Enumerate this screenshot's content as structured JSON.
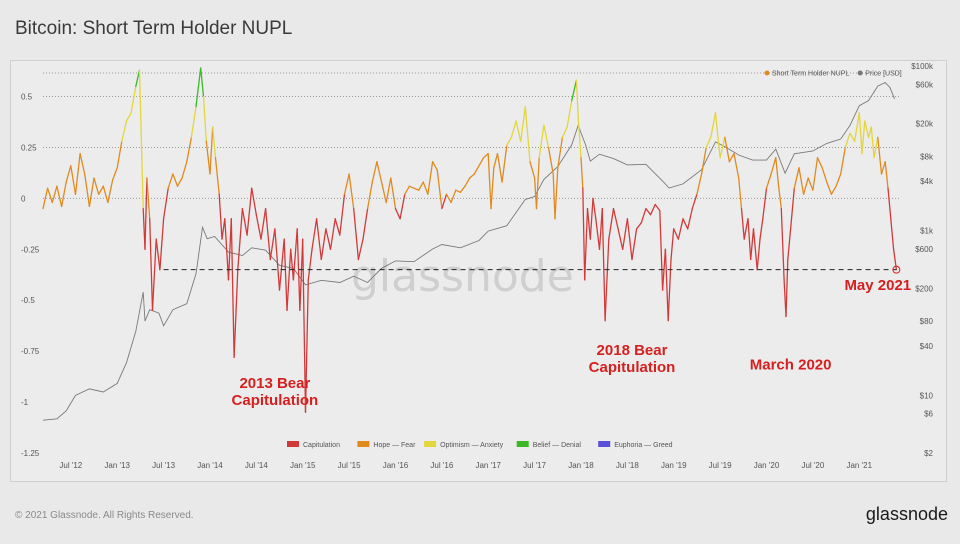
{
  "page": {
    "title": "Bitcoin: Short Term Holder NUPL",
    "copyright": "© 2021 Glassnode. All Rights Reserved.",
    "brand": "glassnode",
    "watermark": "glassnode"
  },
  "chart_data": {
    "type": "line",
    "title": "Bitcoin: Short Term Holder NUPL",
    "x_range": [
      2012.2,
      2021.45
    ],
    "x_ticks": [
      {
        "label": "Jul '12",
        "t": 2012.5
      },
      {
        "label": "Jan '13",
        "t": 2013.0
      },
      {
        "label": "Jul '13",
        "t": 2013.5
      },
      {
        "label": "Jan '14",
        "t": 2014.0
      },
      {
        "label": "Jul '14",
        "t": 2014.5
      },
      {
        "label": "Jan '15",
        "t": 2015.0
      },
      {
        "label": "Jul '15",
        "t": 2015.5
      },
      {
        "label": "Jan '16",
        "t": 2016.0
      },
      {
        "label": "Jul '16",
        "t": 2016.5
      },
      {
        "label": "Jan '17",
        "t": 2017.0
      },
      {
        "label": "Jul '17",
        "t": 2017.5
      },
      {
        "label": "Jan '18",
        "t": 2018.0
      },
      {
        "label": "Jul '18",
        "t": 2018.5
      },
      {
        "label": "Jan '19",
        "t": 2019.0
      },
      {
        "label": "Jul '19",
        "t": 2019.5
      },
      {
        "label": "Jan '20",
        "t": 2020.0
      },
      {
        "label": "Jul '20",
        "t": 2020.5
      },
      {
        "label": "Jan '21",
        "t": 2021.0
      }
    ],
    "y_left": {
      "range": [
        -1.25,
        0.65
      ],
      "ticks": [
        {
          "label": "0.5",
          "v": 0.5
        },
        {
          "label": "0.25",
          "v": 0.25
        },
        {
          "label": "0",
          "v": 0
        },
        {
          "label": "-0.25",
          "v": -0.25
        },
        {
          "label": "-0.5",
          "v": -0.5
        },
        {
          "label": "-0.75",
          "v": -0.75
        },
        {
          "label": "-1",
          "v": -1
        },
        {
          "label": "-1.25",
          "v": -1.25
        }
      ]
    },
    "y_right": {
      "scale": "log",
      "range": [
        2,
        100000
      ],
      "ticks": [
        {
          "label": "$100k",
          "v": 100000
        },
        {
          "label": "$60k",
          "v": 60000
        },
        {
          "label": "$20k",
          "v": 20000
        },
        {
          "label": "$8k",
          "v": 8000
        },
        {
          "label": "$4k",
          "v": 4000
        },
        {
          "label": "$1k",
          "v": 1000
        },
        {
          "label": "$600",
          "v": 600
        },
        {
          "label": "$200",
          "v": 200
        },
        {
          "label": "$80",
          "v": 80
        },
        {
          "label": "$40",
          "v": 40
        },
        {
          "label": "$10",
          "v": 10
        },
        {
          "label": "$6",
          "v": 6
        },
        {
          "label": "$2",
          "v": 2
        }
      ]
    },
    "legend_top": [
      {
        "label": "Short Term Holder NUPL",
        "color": "#e08a1e"
      },
      {
        "label": "Price [USD]",
        "color": "#777777"
      }
    ],
    "legend_bottom": [
      {
        "label": "Capitulation",
        "color": "#d23a3a"
      },
      {
        "label": "Hope — Fear",
        "color": "#e08a1e"
      },
      {
        "label": "Optimism — Anxiety",
        "color": "#e3d63a"
      },
      {
        "label": "Belief — Denial",
        "color": "#3cb829"
      },
      {
        "label": "Euphoria — Greed",
        "color": "#5a4fd8"
      }
    ],
    "zones": [
      {
        "name": "Capitulation",
        "max": 0,
        "color": "#d23a3a"
      },
      {
        "name": "Hope — Fear",
        "max": 0.25,
        "color": "#e08a1e"
      },
      {
        "name": "Optimism — Anxiety",
        "max": 0.5,
        "color": "#e3d63a"
      },
      {
        "name": "Belief — Denial",
        "max": 0.75,
        "color": "#3cb829"
      },
      {
        "name": "Euphoria — Greed",
        "max": 1,
        "color": "#5a4fd8"
      }
    ],
    "reference_line": {
      "value": -0.35,
      "from": 2013.5,
      "to": 2021.4,
      "style": "dashed"
    },
    "nupl_series": [
      [
        2012.2,
        -0.05
      ],
      [
        2012.25,
        0.05
      ],
      [
        2012.3,
        -0.02
      ],
      [
        2012.35,
        0.06
      ],
      [
        2012.4,
        -0.04
      ],
      [
        2012.45,
        0.08
      ],
      [
        2012.5,
        0.16
      ],
      [
        2012.55,
        0.02
      ],
      [
        2012.6,
        0.22
      ],
      [
        2012.65,
        0.12
      ],
      [
        2012.7,
        -0.04
      ],
      [
        2012.75,
        0.1
      ],
      [
        2012.8,
        0.02
      ],
      [
        2012.85,
        0.06
      ],
      [
        2012.9,
        -0.02
      ],
      [
        2012.95,
        0.09
      ],
      [
        2013.0,
        0.15
      ],
      [
        2013.05,
        0.28
      ],
      [
        2013.1,
        0.38
      ],
      [
        2013.15,
        0.42
      ],
      [
        2013.2,
        0.55
      ],
      [
        2013.24,
        0.63
      ],
      [
        2013.28,
        -0.05
      ],
      [
        2013.3,
        -0.25
      ],
      [
        2013.32,
        0.1
      ],
      [
        2013.35,
        -0.1
      ],
      [
        2013.38,
        -0.55
      ],
      [
        2013.42,
        -0.2
      ],
      [
        2013.46,
        -0.35
      ],
      [
        2013.5,
        -0.1
      ],
      [
        2013.55,
        0.05
      ],
      [
        2013.6,
        0.12
      ],
      [
        2013.65,
        0.06
      ],
      [
        2013.7,
        0.1
      ],
      [
        2013.75,
        0.18
      ],
      [
        2013.8,
        0.3
      ],
      [
        2013.85,
        0.45
      ],
      [
        2013.9,
        0.64
      ],
      [
        2013.93,
        0.5
      ],
      [
        2013.96,
        0.28
      ],
      [
        2014.0,
        0.12
      ],
      [
        2014.03,
        0.35
      ],
      [
        2014.06,
        0.2
      ],
      [
        2014.1,
        0.02
      ],
      [
        2014.13,
        -0.2
      ],
      [
        2014.16,
        -0.1
      ],
      [
        2014.2,
        -0.4
      ],
      [
        2014.23,
        -0.1
      ],
      [
        2014.26,
        -0.78
      ],
      [
        2014.3,
        -0.35
      ],
      [
        2014.35,
        -0.05
      ],
      [
        2014.4,
        -0.18
      ],
      [
        2014.45,
        0.05
      ],
      [
        2014.5,
        -0.08
      ],
      [
        2014.55,
        -0.2
      ],
      [
        2014.6,
        -0.05
      ],
      [
        2014.65,
        -0.3
      ],
      [
        2014.7,
        -0.15
      ],
      [
        2014.75,
        -0.45
      ],
      [
        2014.8,
        -0.2
      ],
      [
        2014.83,
        -0.55
      ],
      [
        2014.87,
        -0.25
      ],
      [
        2014.9,
        -0.4
      ],
      [
        2014.94,
        -0.15
      ],
      [
        2014.97,
        -0.55
      ],
      [
        2015.0,
        -0.2
      ],
      [
        2015.03,
        -1.05
      ],
      [
        2015.06,
        -0.4
      ],
      [
        2015.1,
        -0.25
      ],
      [
        2015.15,
        -0.1
      ],
      [
        2015.2,
        -0.3
      ],
      [
        2015.25,
        -0.15
      ],
      [
        2015.3,
        -0.25
      ],
      [
        2015.35,
        -0.1
      ],
      [
        2015.4,
        -0.18
      ],
      [
        2015.45,
        0.02
      ],
      [
        2015.5,
        0.12
      ],
      [
        2015.55,
        -0.05
      ],
      [
        2015.6,
        -0.3
      ],
      [
        2015.65,
        -0.2
      ],
      [
        2015.7,
        -0.05
      ],
      [
        2015.75,
        0.08
      ],
      [
        2015.8,
        0.18
      ],
      [
        2015.85,
        0.08
      ],
      [
        2015.9,
        -0.02
      ],
      [
        2015.95,
        0.1
      ],
      [
        2016.0,
        -0.05
      ],
      [
        2016.05,
        -0.1
      ],
      [
        2016.1,
        0.02
      ],
      [
        2016.15,
        0.06
      ],
      [
        2016.2,
        0.05
      ],
      [
        2016.25,
        0.04
      ],
      [
        2016.3,
        0.08
      ],
      [
        2016.35,
        0.02
      ],
      [
        2016.4,
        0.18
      ],
      [
        2016.45,
        0.14
      ],
      [
        2016.5,
        -0.05
      ],
      [
        2016.55,
        0.02
      ],
      [
        2016.6,
        -0.02
      ],
      [
        2016.65,
        0.04
      ],
      [
        2016.7,
        0.03
      ],
      [
        2016.75,
        0.06
      ],
      [
        2016.8,
        0.1
      ],
      [
        2016.85,
        0.12
      ],
      [
        2016.9,
        0.16
      ],
      [
        2016.95,
        0.2
      ],
      [
        2017.0,
        0.22
      ],
      [
        2017.03,
        -0.05
      ],
      [
        2017.06,
        0.15
      ],
      [
        2017.1,
        0.22
      ],
      [
        2017.15,
        0.08
      ],
      [
        2017.2,
        0.26
      ],
      [
        2017.25,
        0.3
      ],
      [
        2017.3,
        0.38
      ],
      [
        2017.35,
        0.28
      ],
      [
        2017.4,
        0.45
      ],
      [
        2017.45,
        0.18
      ],
      [
        2017.5,
        0.1
      ],
      [
        2017.52,
        -0.05
      ],
      [
        2017.55,
        0.2
      ],
      [
        2017.6,
        0.36
      ],
      [
        2017.65,
        0.25
      ],
      [
        2017.7,
        0.12
      ],
      [
        2017.72,
        -0.1
      ],
      [
        2017.75,
        0.15
      ],
      [
        2017.8,
        0.3
      ],
      [
        2017.85,
        0.35
      ],
      [
        2017.9,
        0.48
      ],
      [
        2017.95,
        0.58
      ],
      [
        2017.97,
        0.4
      ],
      [
        2018.0,
        0.2
      ],
      [
        2018.02,
        0.05
      ],
      [
        2018.04,
        -0.4
      ],
      [
        2018.07,
        -0.05
      ],
      [
        2018.1,
        -0.2
      ],
      [
        2018.13,
        0.0
      ],
      [
        2018.16,
        -0.1
      ],
      [
        2018.2,
        -0.25
      ],
      [
        2018.23,
        -0.05
      ],
      [
        2018.26,
        -0.6
      ],
      [
        2018.3,
        -0.2
      ],
      [
        2018.35,
        -0.05
      ],
      [
        2018.4,
        -0.15
      ],
      [
        2018.45,
        -0.25
      ],
      [
        2018.5,
        -0.1
      ],
      [
        2018.55,
        -0.3
      ],
      [
        2018.6,
        -0.15
      ],
      [
        2018.65,
        -0.12
      ],
      [
        2018.7,
        -0.05
      ],
      [
        2018.75,
        -0.08
      ],
      [
        2018.8,
        -0.03
      ],
      [
        2018.85,
        -0.06
      ],
      [
        2018.88,
        -0.45
      ],
      [
        2018.91,
        -0.25
      ],
      [
        2018.94,
        -0.6
      ],
      [
        2018.97,
        -0.3
      ],
      [
        2019.0,
        -0.15
      ],
      [
        2019.05,
        -0.2
      ],
      [
        2019.1,
        -0.1
      ],
      [
        2019.15,
        -0.15
      ],
      [
        2019.2,
        -0.05
      ],
      [
        2019.25,
        0.02
      ],
      [
        2019.3,
        0.12
      ],
      [
        2019.35,
        0.25
      ],
      [
        2019.4,
        0.3
      ],
      [
        2019.45,
        0.42
      ],
      [
        2019.5,
        0.2
      ],
      [
        2019.55,
        0.3
      ],
      [
        2019.6,
        0.18
      ],
      [
        2019.65,
        0.22
      ],
      [
        2019.7,
        0.1
      ],
      [
        2019.73,
        -0.05
      ],
      [
        2019.76,
        -0.2
      ],
      [
        2019.8,
        -0.1
      ],
      [
        2019.83,
        -0.3
      ],
      [
        2019.86,
        -0.15
      ],
      [
        2019.9,
        -0.35
      ],
      [
        2019.93,
        -0.2
      ],
      [
        2019.96,
        -0.1
      ],
      [
        2020.0,
        0.05
      ],
      [
        2020.05,
        0.12
      ],
      [
        2020.1,
        0.2
      ],
      [
        2020.13,
        0.06
      ],
      [
        2020.16,
        -0.05
      ],
      [
        2020.19,
        -0.4
      ],
      [
        2020.21,
        -0.58
      ],
      [
        2020.23,
        -0.3
      ],
      [
        2020.26,
        -0.15
      ],
      [
        2020.3,
        0.05
      ],
      [
        2020.35,
        0.15
      ],
      [
        2020.4,
        0.02
      ],
      [
        2020.45,
        0.1
      ],
      [
        2020.5,
        0.04
      ],
      [
        2020.55,
        0.2
      ],
      [
        2020.6,
        0.15
      ],
      [
        2020.65,
        0.08
      ],
      [
        2020.7,
        0.02
      ],
      [
        2020.75,
        0.06
      ],
      [
        2020.8,
        0.12
      ],
      [
        2020.85,
        0.25
      ],
      [
        2020.9,
        0.32
      ],
      [
        2020.95,
        0.28
      ],
      [
        2021.0,
        0.42
      ],
      [
        2021.03,
        0.22
      ],
      [
        2021.06,
        0.38
      ],
      [
        2021.1,
        0.3
      ],
      [
        2021.13,
        0.35
      ],
      [
        2021.16,
        0.2
      ],
      [
        2021.2,
        0.3
      ],
      [
        2021.24,
        0.12
      ],
      [
        2021.28,
        0.18
      ],
      [
        2021.31,
        0.05
      ],
      [
        2021.34,
        -0.1
      ],
      [
        2021.37,
        -0.25
      ],
      [
        2021.4,
        -0.35
      ]
    ],
    "price_series": [
      [
        2012.2,
        5
      ],
      [
        2012.35,
        5.2
      ],
      [
        2012.45,
        6.5
      ],
      [
        2012.55,
        10
      ],
      [
        2012.7,
        12
      ],
      [
        2012.85,
        11
      ],
      [
        2013.0,
        14
      ],
      [
        2013.1,
        25
      ],
      [
        2013.2,
        60
      ],
      [
        2013.28,
        180
      ],
      [
        2013.3,
        80
      ],
      [
        2013.35,
        110
      ],
      [
        2013.45,
        100
      ],
      [
        2013.5,
        70
      ],
      [
        2013.6,
        110
      ],
      [
        2013.75,
        130
      ],
      [
        2013.85,
        300
      ],
      [
        2013.92,
        1100
      ],
      [
        2013.97,
        800
      ],
      [
        2014.05,
        850
      ],
      [
        2014.2,
        550
      ],
      [
        2014.35,
        500
      ],
      [
        2014.45,
        620
      ],
      [
        2014.6,
        580
      ],
      [
        2014.75,
        380
      ],
      [
        2014.9,
        350
      ],
      [
        2015.03,
        220
      ],
      [
        2015.2,
        250
      ],
      [
        2015.4,
        235
      ],
      [
        2015.55,
        280
      ],
      [
        2015.7,
        235
      ],
      [
        2015.85,
        350
      ],
      [
        2016.0,
        430
      ],
      [
        2016.2,
        420
      ],
      [
        2016.4,
        600
      ],
      [
        2016.5,
        680
      ],
      [
        2016.7,
        620
      ],
      [
        2016.9,
        760
      ],
      [
        2017.0,
        990
      ],
      [
        2017.2,
        1150
      ],
      [
        2017.4,
        2400
      ],
      [
        2017.5,
        2600
      ],
      [
        2017.6,
        4200
      ],
      [
        2017.75,
        6000
      ],
      [
        2017.9,
        11000
      ],
      [
        2017.97,
        19000
      ],
      [
        2018.05,
        11000
      ],
      [
        2018.1,
        7000
      ],
      [
        2018.2,
        8500
      ],
      [
        2018.35,
        7500
      ],
      [
        2018.5,
        6300
      ],
      [
        2018.7,
        6400
      ],
      [
        2018.88,
        4000
      ],
      [
        2018.95,
        3300
      ],
      [
        2019.1,
        3700
      ],
      [
        2019.3,
        5500
      ],
      [
        2019.45,
        12000
      ],
      [
        2019.55,
        10500
      ],
      [
        2019.7,
        8300
      ],
      [
        2019.85,
        7200
      ],
      [
        2020.0,
        7200
      ],
      [
        2020.1,
        9800
      ],
      [
        2020.2,
        5000
      ],
      [
        2020.3,
        8600
      ],
      [
        2020.5,
        9300
      ],
      [
        2020.65,
        11500
      ],
      [
        2020.8,
        13000
      ],
      [
        2020.9,
        19000
      ],
      [
        2021.0,
        33000
      ],
      [
        2021.1,
        38000
      ],
      [
        2021.2,
        57000
      ],
      [
        2021.28,
        63000
      ],
      [
        2021.33,
        55000
      ],
      [
        2021.38,
        40000
      ]
    ],
    "annotations": [
      {
        "lines": [
          "2013 Bear",
          "Capitulation"
        ],
        "t": 2014.7,
        "v": -0.93
      },
      {
        "lines": [
          "2018 Bear",
          "Capitulation"
        ],
        "t": 2018.55,
        "v": -0.77
      },
      {
        "lines": [
          "March 2020"
        ],
        "t": 2020.26,
        "v": -0.84
      },
      {
        "lines": [
          "May 2021"
        ],
        "t": 2021.2,
        "v": -0.45
      }
    ]
  }
}
